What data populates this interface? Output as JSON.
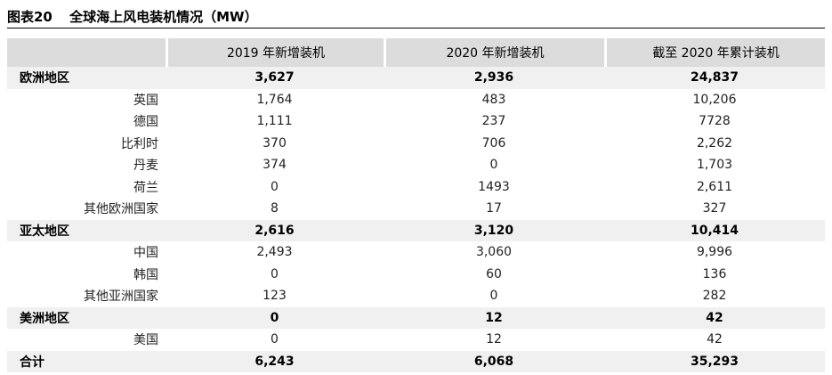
{
  "title": {
    "figure": "图表20",
    "text": "全球海上风电装机情况（MW）"
  },
  "columns": [
    "",
    "2019 年新增装机",
    "2020 年新增装机",
    "截至 2020 年累计装机"
  ],
  "rows": [
    {
      "type": "group",
      "label": "欧洲地区",
      "values": [
        "3,627",
        "2,936",
        "24,837"
      ]
    },
    {
      "type": "sub",
      "label": "英国",
      "values": [
        "1,764",
        "483",
        "10,206"
      ]
    },
    {
      "type": "sub",
      "label": "德国",
      "values": [
        "1,111",
        "237",
        "7728"
      ]
    },
    {
      "type": "sub",
      "label": "比利时",
      "values": [
        "370",
        "706",
        "2,262"
      ]
    },
    {
      "type": "sub",
      "label": "丹麦",
      "values": [
        "374",
        "0",
        "1,703"
      ]
    },
    {
      "type": "sub",
      "label": "荷兰",
      "values": [
        "0",
        "1493",
        "2,611"
      ]
    },
    {
      "type": "sub",
      "label": "其他欧洲国家",
      "values": [
        "8",
        "17",
        "327"
      ]
    },
    {
      "type": "group",
      "label": "亚太地区",
      "values": [
        "2,616",
        "3,120",
        "10,414"
      ]
    },
    {
      "type": "sub",
      "label": "中国",
      "values": [
        "2,493",
        "3,060",
        "9,996"
      ]
    },
    {
      "type": "sub",
      "label": "韩国",
      "values": [
        "0",
        "60",
        "136"
      ]
    },
    {
      "type": "sub",
      "label": "其他亚洲国家",
      "values": [
        "123",
        "0",
        "282"
      ]
    },
    {
      "type": "group",
      "label": "美洲地区",
      "values": [
        "0",
        "12",
        "42"
      ]
    },
    {
      "type": "sub",
      "label": "美国",
      "values": [
        "0",
        "12",
        "42"
      ]
    },
    {
      "type": "total",
      "label": "合计",
      "values": [
        "6,243",
        "6,068",
        "35,293"
      ]
    }
  ]
}
